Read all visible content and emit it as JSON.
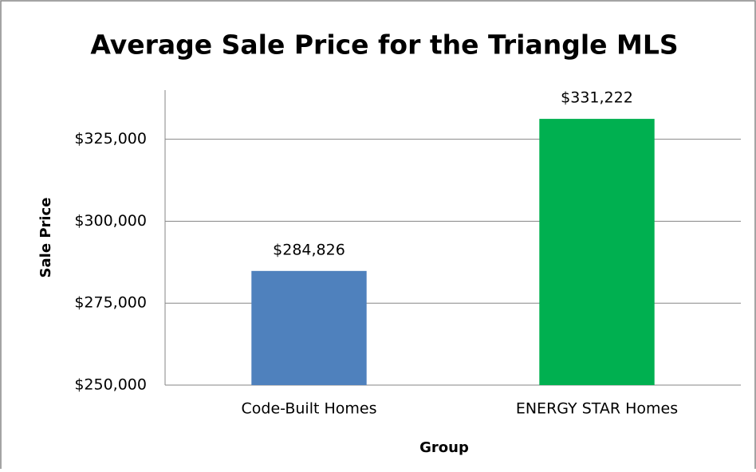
{
  "chart_data": {
    "type": "bar",
    "title": "Average Sale Price for the Triangle MLS",
    "x_label": "Group",
    "y_label": "Sale Price",
    "categories": [
      "Code-Built Homes",
      "ENERGY STAR Homes"
    ],
    "values": [
      284826,
      331222
    ],
    "value_labels": [
      "$284,826",
      "$331,222"
    ],
    "colors": [
      "#4f81bd",
      "#00b050"
    ],
    "ylim": [
      250000,
      340000
    ],
    "yticks": [
      {
        "value": 250000,
        "label": "$250,000"
      },
      {
        "value": 275000,
        "label": "$275,000"
      },
      {
        "value": 300000,
        "label": "$300,000"
      },
      {
        "value": 325000,
        "label": "$325,000"
      }
    ],
    "grid": true
  }
}
